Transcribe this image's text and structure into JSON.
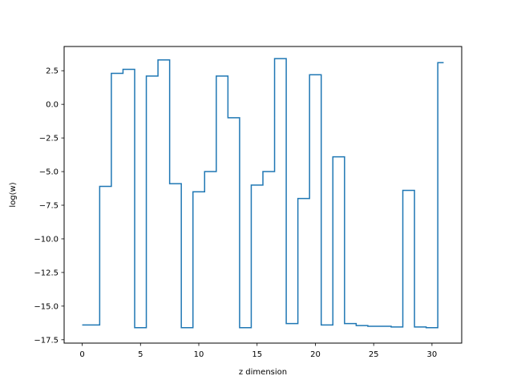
{
  "chart_data": {
    "type": "line",
    "drawstyle": "steps-mid",
    "title": "",
    "xlabel": "z dimension",
    "ylabel": "log(w)",
    "xlim": [
      -1.55,
      32.55
    ],
    "ylim": [
      -17.75,
      4.3
    ],
    "xticks": [
      0,
      5,
      10,
      15,
      20,
      25,
      30
    ],
    "xtick_labels": [
      "0",
      "5",
      "10",
      "15",
      "20",
      "25",
      "30"
    ],
    "yticks": [
      2.5,
      0.0,
      -2.5,
      -5.0,
      -7.5,
      -10.0,
      -12.5,
      -15.0,
      -17.5
    ],
    "ytick_labels": [
      "2.5",
      "0.0",
      "−2.5",
      "−5.0",
      "−7.5",
      "−10.0",
      "−12.5",
      "−15.0",
      "−17.5"
    ],
    "grid": false,
    "x": [
      0,
      1,
      2,
      3,
      4,
      5,
      6,
      7,
      8,
      9,
      10,
      11,
      12,
      13,
      14,
      15,
      16,
      17,
      18,
      19,
      20,
      21,
      22,
      23,
      24,
      25,
      26,
      27,
      28,
      29,
      30,
      31
    ],
    "y": [
      -16.4,
      -16.4,
      -6.1,
      2.3,
      2.6,
      -16.6,
      2.1,
      3.3,
      -5.9,
      -16.6,
      -6.5,
      -5.0,
      2.1,
      -1.0,
      -16.6,
      -6.0,
      -5.0,
      3.4,
      -16.3,
      -7.0,
      2.2,
      -16.4,
      -3.9,
      -16.3,
      -16.45,
      -16.5,
      -16.5,
      -16.55,
      -6.4,
      -16.55,
      -16.6,
      3.1
    ],
    "line_color": "#1f77b4"
  }
}
